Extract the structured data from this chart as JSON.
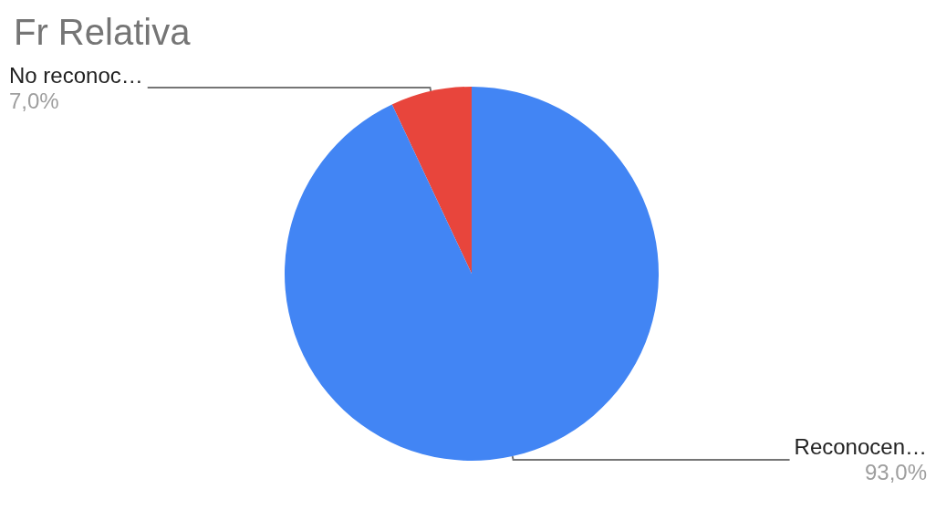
{
  "chart_data": {
    "type": "pie",
    "title": "Fr Relativa",
    "categories": [
      "No reconoc…",
      "Reconocen…"
    ],
    "values": [
      7,
      93
    ],
    "colors": [
      "#e8453c",
      "#4285f4"
    ],
    "value_labels": [
      "7,0%",
      "93,0%"
    ],
    "legend": false
  }
}
